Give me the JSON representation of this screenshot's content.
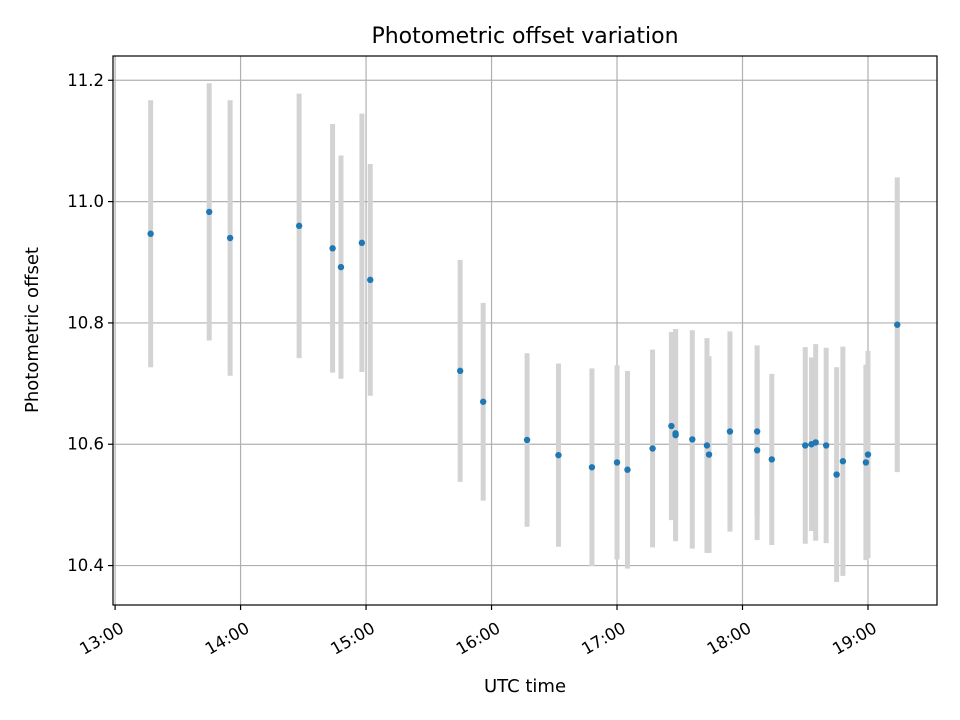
{
  "chart_data": {
    "type": "scatter",
    "title": "Photometric offset variation",
    "xlabel": "UTC time",
    "ylabel": "Photometric offset",
    "xlim": [
      "12:59",
      "19:33"
    ],
    "ylim": [
      10.335,
      11.24
    ],
    "x_ticks": [
      "13:00",
      "14:00",
      "15:00",
      "16:00",
      "17:00",
      "18:00",
      "19:00"
    ],
    "y_ticks": [
      "10.4",
      "10.6",
      "10.8",
      "11.0",
      "11.2"
    ],
    "grid": true,
    "marker_color": "#1f77b4",
    "errorbar_color": "#d3d3d3",
    "points": [
      {
        "x": "13:17",
        "y": 10.947,
        "err": 0.22
      },
      {
        "x": "13:45",
        "y": 10.983,
        "err": 0.212
      },
      {
        "x": "13:55",
        "y": 10.94,
        "err": 0.227
      },
      {
        "x": "14:28",
        "y": 10.96,
        "err": 0.218
      },
      {
        "x": "14:44",
        "y": 10.923,
        "err": 0.205
      },
      {
        "x": "14:48",
        "y": 10.892,
        "err": 0.184
      },
      {
        "x": "14:58",
        "y": 10.932,
        "err": 0.213
      },
      {
        "x": "15:02",
        "y": 10.871,
        "err": 0.191
      },
      {
        "x": "15:45",
        "y": 10.721,
        "err": 0.183
      },
      {
        "x": "15:56",
        "y": 10.67,
        "err": 0.163
      },
      {
        "x": "16:17",
        "y": 10.607,
        "err": 0.143
      },
      {
        "x": "16:32",
        "y": 10.582,
        "err": 0.151
      },
      {
        "x": "16:48",
        "y": 10.562,
        "err": 0.163
      },
      {
        "x": "17:00",
        "y": 10.57,
        "err": 0.16
      },
      {
        "x": "17:05",
        "y": 10.558,
        "err": 0.163
      },
      {
        "x": "17:17",
        "y": 10.593,
        "err": 0.163
      },
      {
        "x": "17:26",
        "y": 10.63,
        "err": 0.155
      },
      {
        "x": "17:28",
        "y": 10.615,
        "err": 0.175
      },
      {
        "x": "17:28",
        "y": 10.618,
        "err": 0.172
      },
      {
        "x": "17:36",
        "y": 10.608,
        "err": 0.18
      },
      {
        "x": "17:43",
        "y": 10.598,
        "err": 0.177
      },
      {
        "x": "17:44",
        "y": 10.583,
        "err": 0.162
      },
      {
        "x": "17:54",
        "y": 10.621,
        "err": 0.165
      },
      {
        "x": "18:07",
        "y": 10.621,
        "err": 0.142
      },
      {
        "x": "18:07",
        "y": 10.59,
        "err": 0.148
      },
      {
        "x": "18:14",
        "y": 10.575,
        "err": 0.141
      },
      {
        "x": "18:30",
        "y": 10.598,
        "err": 0.162
      },
      {
        "x": "18:33",
        "y": 10.6,
        "err": 0.143
      },
      {
        "x": "18:35",
        "y": 10.603,
        "err": 0.162
      },
      {
        "x": "18:40",
        "y": 10.598,
        "err": 0.161
      },
      {
        "x": "18:45",
        "y": 10.55,
        "err": 0.177
      },
      {
        "x": "18:48",
        "y": 10.572,
        "err": 0.189
      },
      {
        "x": "18:59",
        "y": 10.57,
        "err": 0.161
      },
      {
        "x": "19:00",
        "y": 10.583,
        "err": 0.171
      },
      {
        "x": "19:14",
        "y": 10.797,
        "err": 0.243
      }
    ]
  }
}
